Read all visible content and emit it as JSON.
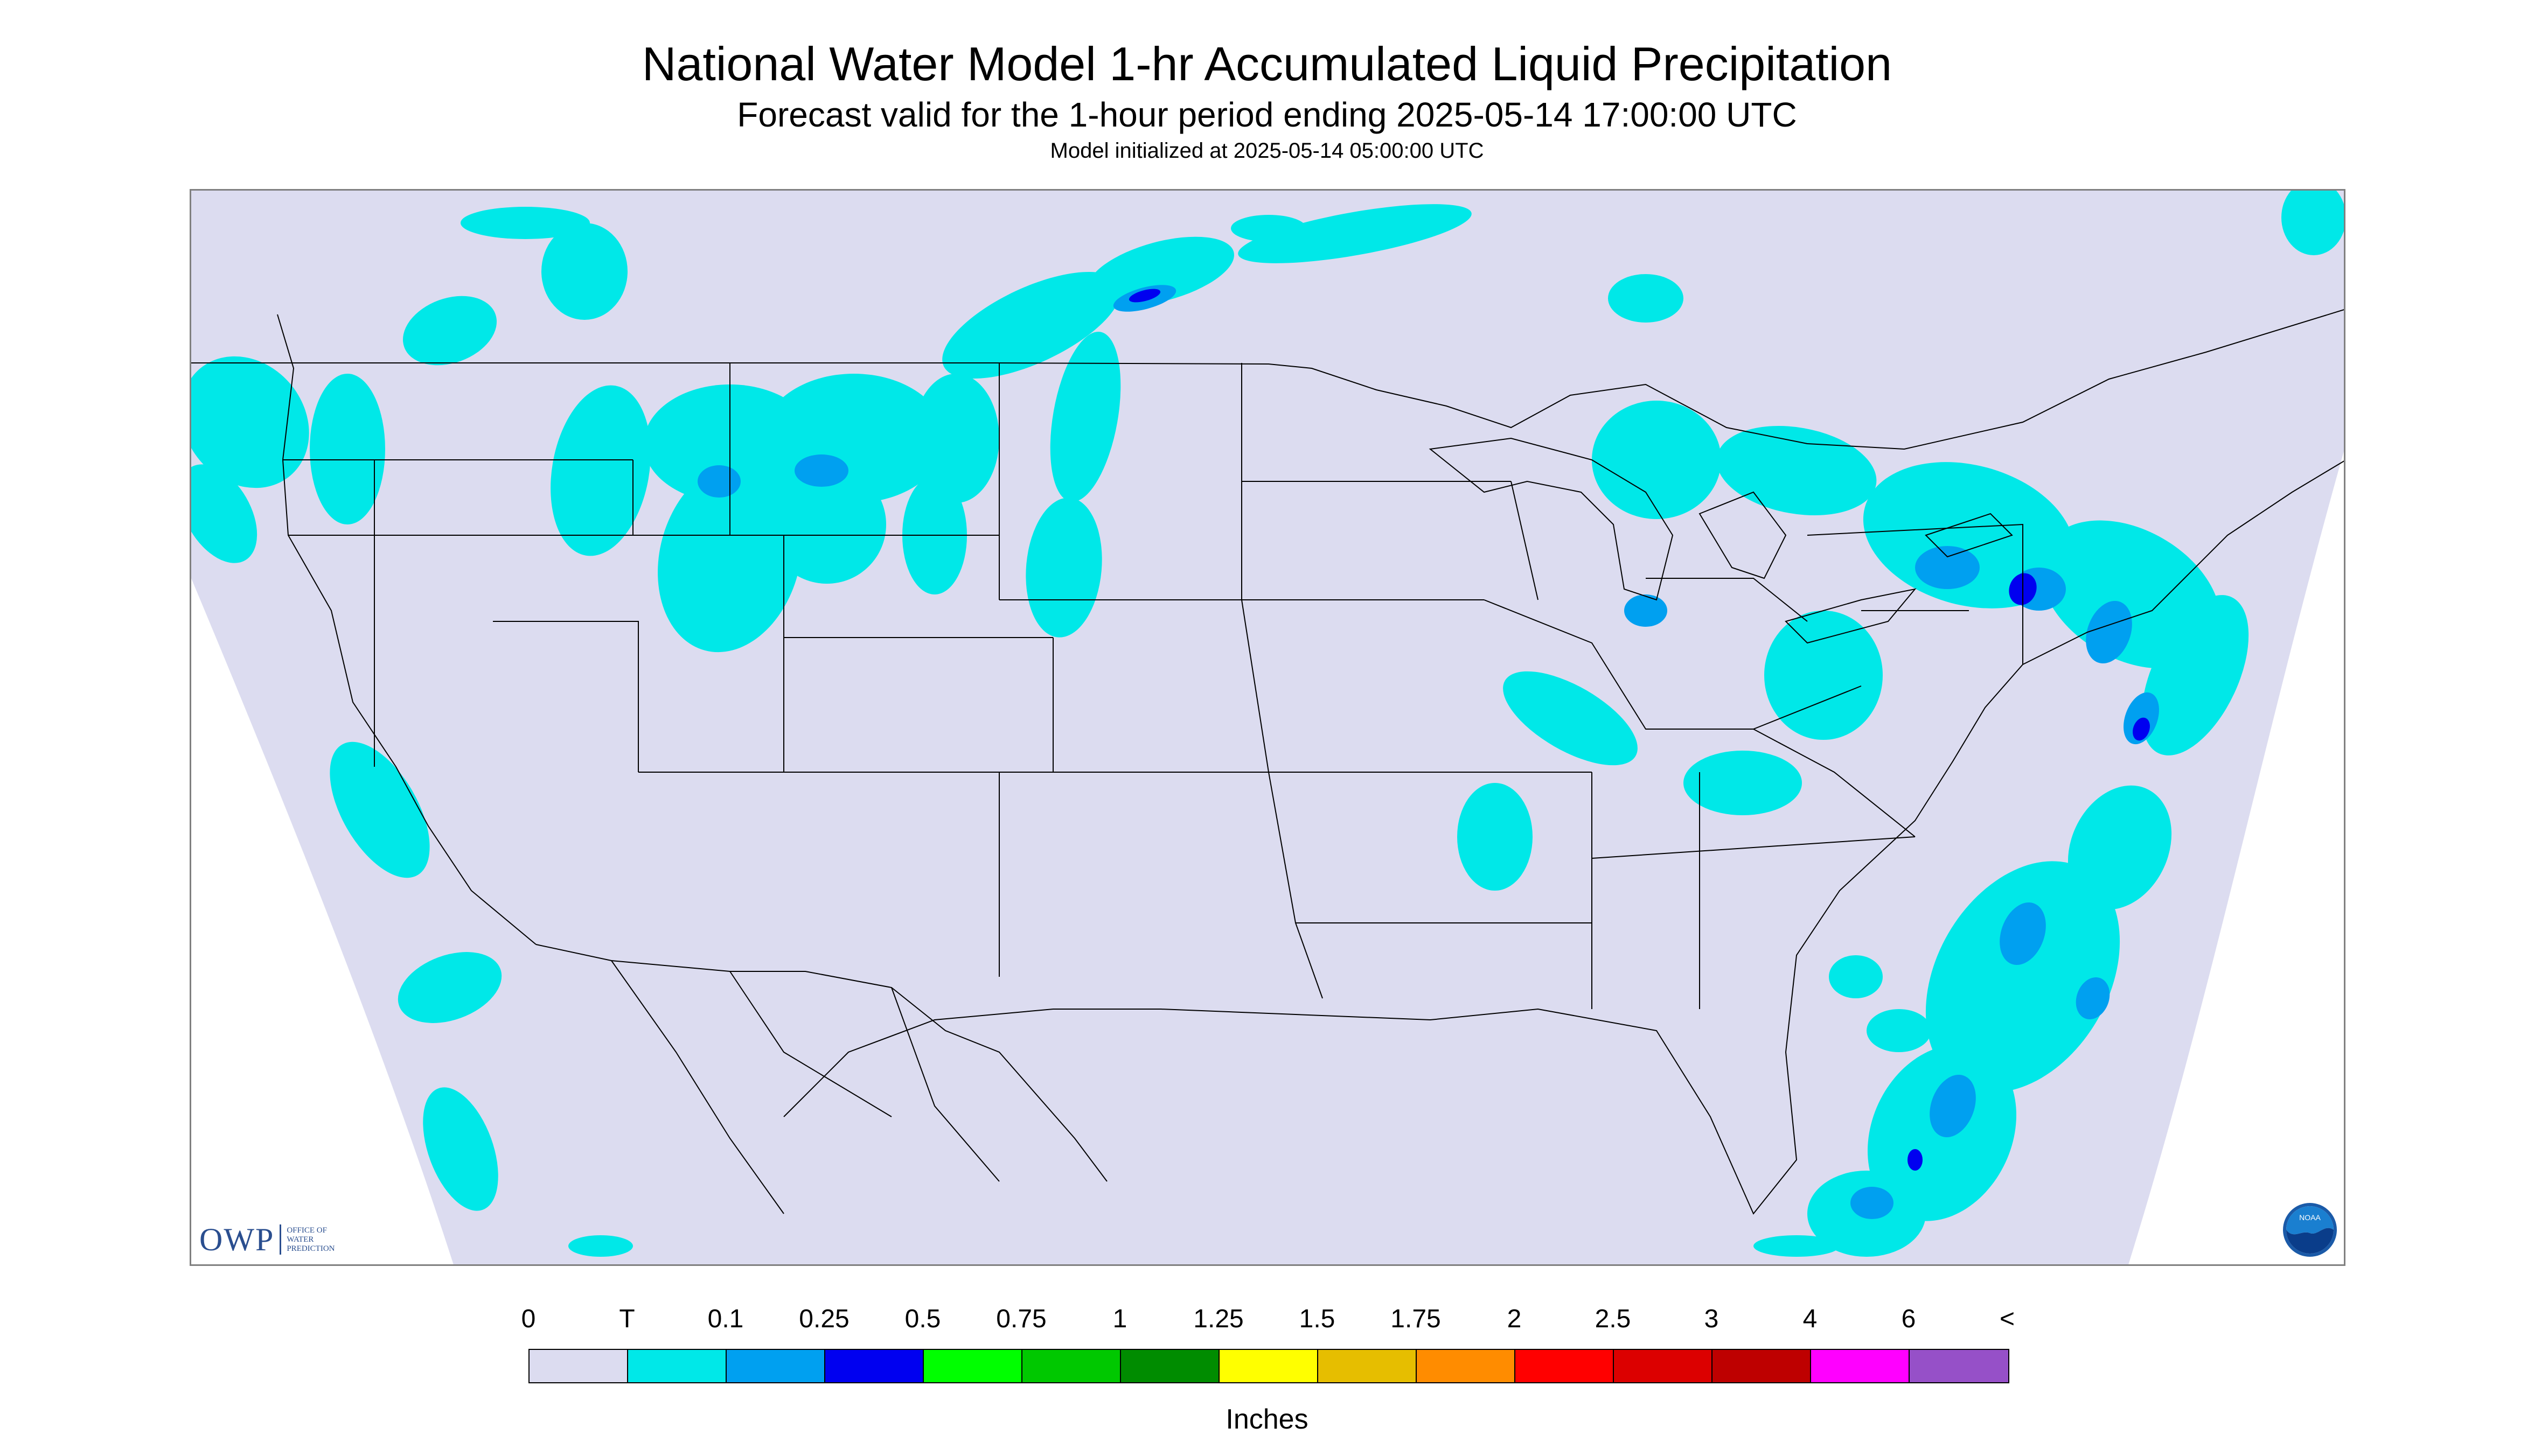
{
  "header": {
    "title": "National Water Model 1-hr Accumulated Liquid Precipitation",
    "subtitle": "Forecast valid for the 1-hour period ending 2025-05-14 17:00:00 UTC",
    "init": "Model initialized at 2025-05-14 05:00:00 UTC"
  },
  "map": {
    "domain_fill": "#dcdcf0",
    "outside_fill": "#ffffff",
    "precip_color_trace": "#00e8e8",
    "precip_color_light": "#00a0f0",
    "precip_color_moderate": "#0000f0"
  },
  "branding": {
    "owp_letters": "OWP",
    "owp_line1": "OFFICE OF",
    "owp_line2": "WATER",
    "owp_line3": "PREDICTION",
    "noaa_label": "NOAA",
    "noaa_icon": "noaa-logo-icon"
  },
  "legend": {
    "labels": [
      "0",
      "T",
      "0.1",
      "0.25",
      "0.5",
      "0.75",
      "1",
      "1.25",
      "1.5",
      "1.75",
      "2",
      "2.5",
      "3",
      "4",
      "6",
      "<"
    ],
    "colors": [
      "#dcdcf0",
      "#00e8e8",
      "#00a0f0",
      "#0000f0",
      "#00ff00",
      "#00c800",
      "#008c00",
      "#ffff00",
      "#e6be00",
      "#ff8c00",
      "#ff0000",
      "#dc0000",
      "#be0000",
      "#ff00ff",
      "#9650c8"
    ],
    "units": "Inches"
  }
}
